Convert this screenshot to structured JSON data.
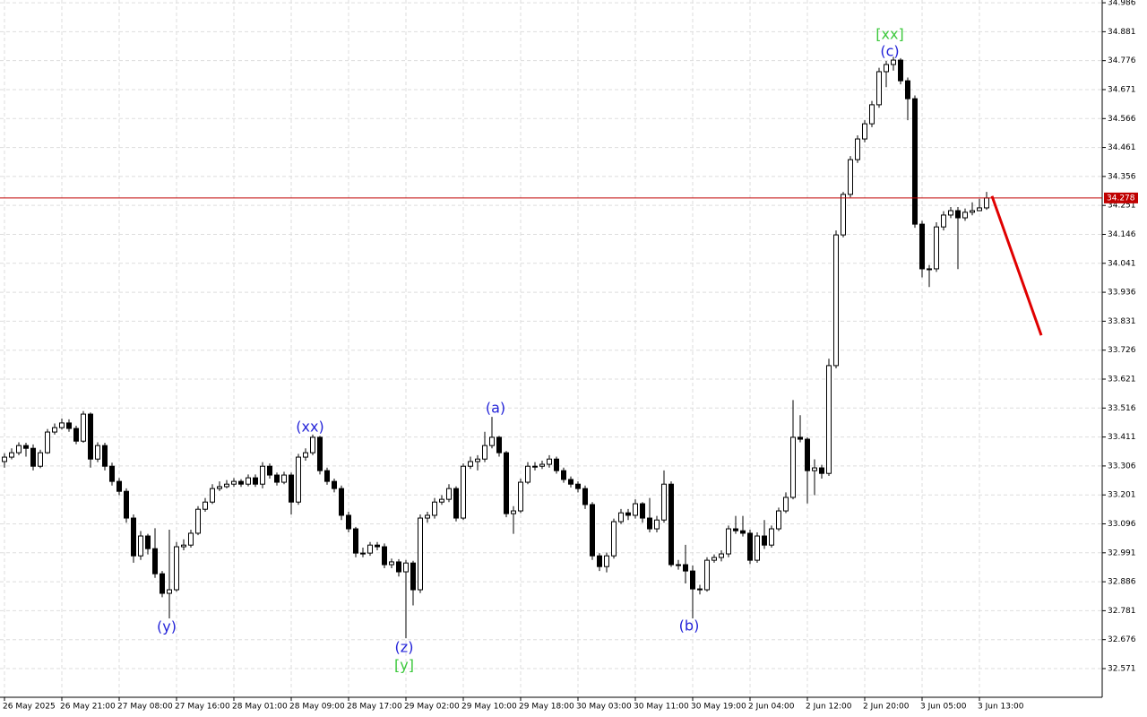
{
  "chart_data": {
    "type": "candlestick",
    "categories": [
      "26 May 2025",
      null,
      null,
      null,
      null,
      null,
      null,
      null,
      "26 May 21:00",
      null,
      null,
      null,
      null,
      null,
      null,
      null,
      "27 May 08:00",
      null,
      null,
      null,
      null,
      null,
      null,
      null,
      "27 May 16:00",
      null,
      null,
      null,
      null,
      null,
      null,
      null,
      "28 May 01:00",
      null,
      null,
      null,
      null,
      null,
      null,
      null,
      "28 May 09:00",
      null,
      null,
      null,
      null,
      null,
      null,
      null,
      "28 May 17:00",
      null,
      null,
      null,
      null,
      null,
      null,
      null,
      "29 May 02:00",
      null,
      null,
      null,
      null,
      null,
      null,
      null,
      "29 May 10:00",
      null,
      null,
      null,
      null,
      null,
      null,
      null,
      "29 May 18:00",
      null,
      null,
      null,
      null,
      null,
      null,
      null,
      "30 May 03:00",
      null,
      null,
      null,
      null,
      null,
      null,
      null,
      "30 May 11:00",
      null,
      null,
      null,
      null,
      null,
      null,
      null,
      "30 May 19:00",
      null,
      null,
      null,
      null,
      null,
      null,
      null,
      "2 Jun 04:00",
      null,
      null,
      null,
      null,
      null,
      null,
      null,
      "2 Jun 12:00",
      null,
      null,
      null,
      null,
      null,
      null,
      null,
      "2 Jun 20:00",
      null,
      null,
      null,
      null,
      null,
      null,
      null,
      "3 Jun 05:00",
      null,
      null,
      null,
      null,
      null,
      null,
      null,
      "3 Jun 13:00",
      null
    ],
    "open": [
      33.322,
      33.338,
      33.354,
      33.38,
      33.37,
      33.305,
      33.354,
      33.429,
      33.445,
      33.462,
      33.442,
      33.396,
      33.494,
      33.331,
      33.38,
      33.305,
      33.25,
      33.214,
      33.117,
      32.98,
      33.052,
      33.006,
      32.915,
      32.844,
      32.857,
      33.013,
      33.019,
      33.062,
      33.149,
      33.175,
      33.224,
      33.231,
      33.24,
      33.25,
      33.24,
      33.263,
      33.24,
      33.305,
      33.273,
      33.247,
      33.273,
      33.175,
      33.338,
      33.354,
      33.41,
      33.289,
      33.25,
      33.224,
      33.127,
      33.078,
      32.99,
      32.99,
      33.019,
      33.013,
      32.948,
      32.958,
      32.922,
      32.954,
      32.857,
      33.117,
      33.127,
      33.175,
      33.185,
      33.224,
      33.117,
      33.305,
      33.322,
      33.331,
      33.38,
      33.41,
      33.354,
      33.133,
      33.143,
      33.247,
      33.305,
      33.305,
      33.312,
      33.331,
      33.289,
      33.257,
      33.24,
      33.224,
      33.166,
      32.98,
      32.941,
      32.98,
      33.104,
      33.136,
      33.127,
      33.169,
      33.117,
      33.078,
      33.11,
      33.24,
      32.948,
      32.948,
      32.925,
      32.86,
      32.857,
      32.964,
      32.974,
      32.987,
      33.078,
      33.071,
      33.062,
      32.964,
      33.052,
      33.019,
      33.078,
      33.143,
      33.192,
      33.41,
      33.403,
      33.289,
      33.299,
      33.279,
      33.67,
      34.144,
      34.291,
      34.417,
      34.492,
      34.547,
      34.616,
      34.736,
      34.762,
      34.778,
      34.703,
      34.638,
      34.183,
      34.021,
      34.021,
      34.173,
      34.216,
      34.232,
      34.206,
      34.226,
      34.232,
      34.242
    ],
    "high": [
      33.352,
      33.37,
      33.392,
      33.39,
      33.384,
      33.365,
      33.44,
      33.46,
      33.478,
      33.475,
      33.452,
      33.505,
      33.5,
      33.392,
      33.39,
      33.318,
      33.262,
      33.225,
      33.13,
      33.07,
      33.06,
      33.08,
      32.925,
      33.075,
      33.03,
      33.04,
      33.075,
      33.16,
      33.19,
      33.24,
      33.25,
      33.255,
      33.262,
      33.258,
      33.275,
      33.275,
      33.32,
      33.315,
      33.282,
      33.285,
      33.282,
      33.35,
      33.37,
      33.42,
      33.415,
      33.3,
      33.26,
      33.235,
      33.14,
      33.085,
      33.01,
      33.03,
      33.03,
      33.025,
      32.97,
      32.968,
      32.965,
      32.962,
      33.13,
      33.14,
      33.19,
      33.2,
      33.24,
      33.232,
      33.315,
      33.34,
      33.345,
      33.43,
      33.484,
      33.415,
      33.36,
      33.16,
      33.26,
      33.32,
      33.32,
      33.325,
      33.345,
      33.34,
      33.3,
      33.268,
      33.25,
      33.235,
      33.175,
      32.99,
      32.992,
      33.115,
      33.15,
      33.15,
      33.185,
      33.175,
      33.19,
      33.125,
      33.29,
      33.25,
      32.965,
      33.02,
      32.945,
      32.875,
      32.975,
      32.985,
      33.0,
      33.09,
      33.125,
      33.125,
      33.075,
      33.065,
      33.11,
      33.09,
      33.155,
      33.21,
      33.545,
      33.49,
      33.41,
      33.33,
      33.31,
      33.695,
      34.16,
      34.3,
      34.43,
      34.505,
      34.56,
      34.63,
      34.75,
      34.775,
      34.79,
      34.785,
      34.715,
      34.65,
      34.195,
      34.035,
      34.19,
      34.23,
      34.245,
      34.245,
      34.24,
      34.262,
      34.275,
      34.3
    ],
    "low": [
      33.3,
      33.33,
      33.345,
      33.34,
      33.29,
      33.298,
      33.35,
      33.42,
      33.438,
      33.43,
      33.385,
      33.39,
      33.3,
      33.32,
      33.29,
      33.235,
      33.2,
      33.1,
      32.955,
      32.965,
      32.985,
      32.9,
      32.83,
      32.753,
      32.85,
      33.0,
      33.01,
      33.055,
      33.14,
      33.168,
      33.215,
      33.225,
      33.23,
      33.23,
      33.232,
      33.23,
      33.225,
      33.26,
      33.235,
      33.24,
      33.13,
      33.165,
      33.325,
      33.345,
      33.275,
      33.238,
      33.21,
      33.11,
      33.065,
      32.975,
      32.975,
      32.98,
      33.0,
      32.935,
      32.935,
      32.905,
      32.681,
      32.8,
      32.845,
      33.1,
      33.115,
      33.165,
      33.175,
      33.105,
      33.11,
      33.295,
      33.29,
      33.32,
      33.37,
      33.34,
      33.12,
      33.06,
      33.135,
      33.24,
      33.29,
      33.295,
      33.3,
      33.278,
      33.245,
      33.228,
      33.21,
      33.15,
      32.965,
      32.925,
      32.92,
      32.97,
      33.095,
      33.11,
      33.115,
      33.1,
      33.065,
      33.065,
      33.1,
      32.94,
      32.93,
      32.88,
      32.753,
      32.84,
      32.85,
      32.955,
      32.96,
      32.975,
      33.06,
      33.05,
      32.95,
      32.955,
      33.005,
      33.01,
      33.07,
      33.135,
      33.185,
      33.392,
      33.17,
      33.2,
      33.26,
      33.27,
      33.66,
      34.135,
      34.28,
      34.405,
      34.48,
      34.535,
      34.605,
      34.68,
      34.74,
      34.69,
      34.56,
      34.17,
      33.99,
      33.955,
      34.01,
      34.16,
      34.205,
      34.02,
      34.195,
      34.215,
      34.23,
      34.235
    ],
    "close": [
      33.338,
      33.354,
      33.38,
      33.37,
      33.305,
      33.354,
      33.429,
      33.445,
      33.462,
      33.442,
      33.396,
      33.494,
      33.331,
      33.38,
      33.305,
      33.25,
      33.214,
      33.117,
      32.98,
      33.052,
      33.006,
      32.915,
      32.844,
      32.857,
      33.013,
      33.019,
      33.062,
      33.149,
      33.175,
      33.224,
      33.231,
      33.24,
      33.25,
      33.24,
      33.263,
      33.24,
      33.305,
      33.273,
      33.247,
      33.273,
      33.175,
      33.338,
      33.354,
      33.41,
      33.289,
      33.25,
      33.224,
      33.127,
      33.078,
      32.99,
      32.99,
      33.019,
      33.013,
      32.948,
      32.958,
      32.922,
      32.954,
      32.857,
      33.117,
      33.127,
      33.175,
      33.185,
      33.224,
      33.117,
      33.305,
      33.322,
      33.331,
      33.38,
      33.41,
      33.354,
      33.133,
      33.143,
      33.247,
      33.305,
      33.305,
      33.312,
      33.331,
      33.289,
      33.257,
      33.24,
      33.224,
      33.166,
      32.98,
      32.941,
      32.98,
      33.104,
      33.136,
      33.127,
      33.169,
      33.117,
      33.078,
      33.11,
      33.24,
      32.948,
      32.948,
      32.925,
      32.86,
      32.857,
      32.964,
      32.974,
      32.987,
      33.078,
      33.071,
      33.062,
      32.964,
      33.052,
      33.019,
      33.078,
      33.143,
      33.192,
      33.41,
      33.403,
      33.289,
      33.299,
      33.279,
      33.67,
      34.144,
      34.291,
      34.417,
      34.492,
      34.547,
      34.616,
      34.736,
      34.762,
      34.778,
      34.703,
      34.638,
      34.183,
      34.021,
      34.021,
      34.173,
      34.216,
      34.232,
      34.206,
      34.226,
      34.232,
      34.242,
      34.278
    ],
    "ylim": [
      32.467,
      34.996
    ],
    "yticks": [
      34.986,
      34.881,
      34.776,
      34.671,
      34.566,
      34.461,
      34.356,
      34.251,
      34.146,
      34.041,
      33.936,
      33.831,
      33.726,
      33.621,
      33.516,
      33.411,
      33.306,
      33.201,
      33.096,
      32.991,
      32.886,
      32.781,
      32.676,
      32.571
    ],
    "grid": true,
    "current_price": 34.278,
    "current_price_color": "#c00000",
    "forecast": {
      "color": "#e00000",
      "values": [
        34.285,
        33.78
      ]
    },
    "annotations": [
      {
        "text": "(y)",
        "color": "#2323d8"
      },
      {
        "text": "(xx)",
        "color": "#2323d8"
      },
      {
        "text": "(z)",
        "color": "#2323d8"
      },
      {
        "text": "[y]",
        "color": "#3cc83c"
      },
      {
        "text": "(a)",
        "color": "#2323d8"
      },
      {
        "text": "(b)",
        "color": "#2323d8"
      },
      {
        "text": "[xx]",
        "color": "#3cc83c"
      },
      {
        "text": "(c)",
        "color": "#2323d8"
      }
    ]
  }
}
